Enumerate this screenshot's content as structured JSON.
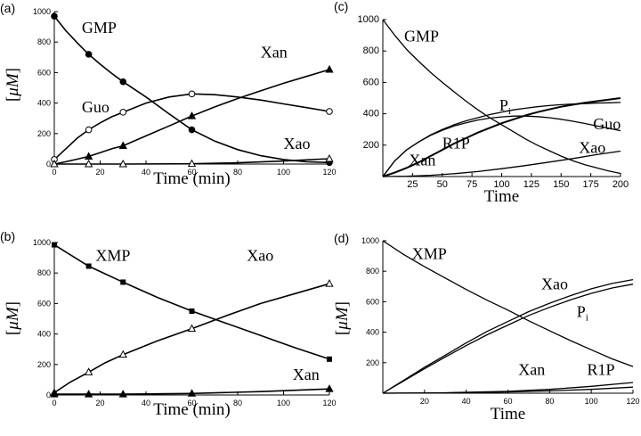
{
  "chart_data": [
    {
      "panel": "(a)",
      "type": "line",
      "xlabel": "Time (min)",
      "ylabel_main": "[",
      "ylabel_unit": "μM",
      "ylabel_close": "]",
      "xlim": [
        0,
        120
      ],
      "ylim": [
        0,
        1000
      ],
      "xticks": [
        0,
        20,
        40,
        60,
        80,
        100,
        120
      ],
      "yticks": [
        0,
        200,
        400,
        600,
        800,
        1000
      ],
      "series": [
        {
          "name": "GMP",
          "marker": "filled-circle",
          "x": [
            0,
            15,
            30,
            60,
            120
          ],
          "y": [
            970,
            720,
            540,
            225,
            10
          ],
          "curve_x": [
            0,
            5,
            10,
            15,
            20,
            25,
            30,
            40,
            50,
            60,
            70,
            80,
            90,
            100,
            110,
            120
          ],
          "curve_y": [
            970,
            875,
            795,
            720,
            655,
            595,
            540,
            440,
            330,
            225,
            150,
            95,
            55,
            30,
            15,
            10
          ]
        },
        {
          "name": "Guo",
          "marker": "open-circle",
          "x": [
            0,
            15,
            30,
            60,
            120
          ],
          "y": [
            30,
            225,
            340,
            460,
            345
          ],
          "curve_x": [
            0,
            5,
            10,
            15,
            20,
            25,
            30,
            40,
            50,
            60,
            70,
            80,
            90,
            100,
            110,
            120
          ],
          "curve_y": [
            30,
            100,
            170,
            225,
            270,
            310,
            340,
            400,
            440,
            460,
            455,
            440,
            420,
            395,
            370,
            345
          ]
        },
        {
          "name": "Xan",
          "marker": "filled-triangle",
          "x": [
            0,
            15,
            30,
            60,
            120
          ],
          "y": [
            0,
            50,
            120,
            315,
            620
          ],
          "curve_x": [
            0,
            5,
            10,
            15,
            20,
            25,
            30,
            40,
            50,
            60,
            70,
            80,
            90,
            100,
            110,
            120
          ],
          "curve_y": [
            0,
            15,
            32,
            50,
            75,
            100,
            120,
            185,
            250,
            315,
            375,
            430,
            480,
            530,
            575,
            620
          ]
        },
        {
          "name": "Xao",
          "marker": "open-triangle",
          "x": [
            0,
            15,
            30,
            60,
            120
          ],
          "y": [
            0,
            0,
            0,
            2,
            35
          ],
          "curve_x": [
            0,
            30,
            60,
            80,
            100,
            120
          ],
          "curve_y": [
            0,
            0,
            2,
            8,
            20,
            35
          ]
        }
      ],
      "labels": [
        {
          "text": "GMP",
          "x": 12,
          "y": 860
        },
        {
          "text": "Guo",
          "x": 12,
          "y": 340
        },
        {
          "text": "Xan",
          "x": 90,
          "y": 700
        },
        {
          "text": "Xao",
          "x": 100,
          "y": 100
        }
      ]
    },
    {
      "panel": "(b)",
      "type": "line",
      "xlabel": "Time (min)",
      "ylabel_main": "[",
      "ylabel_unit": "μM",
      "ylabel_close": "]",
      "xlim": [
        0,
        120
      ],
      "ylim": [
        0,
        1000
      ],
      "xticks": [
        0,
        20,
        40,
        60,
        80,
        100,
        120
      ],
      "yticks": [
        0,
        200,
        400,
        600,
        800,
        1000
      ],
      "series": [
        {
          "name": "XMP",
          "marker": "filled-square",
          "x": [
            0,
            15,
            30,
            60,
            120
          ],
          "y": [
            985,
            845,
            740,
            550,
            235
          ],
          "curve_x": [
            0,
            15,
            30,
            45,
            60,
            75,
            90,
            105,
            120
          ],
          "curve_y": [
            985,
            845,
            740,
            640,
            550,
            470,
            390,
            310,
            235
          ]
        },
        {
          "name": "Xao",
          "marker": "open-triangle",
          "x": [
            0,
            15,
            30,
            60,
            120
          ],
          "y": [
            15,
            150,
            265,
            435,
            730
          ],
          "curve_x": [
            0,
            7,
            15,
            22,
            30,
            45,
            60,
            75,
            90,
            105,
            120
          ],
          "curve_y": [
            15,
            85,
            150,
            210,
            265,
            355,
            435,
            520,
            600,
            665,
            730
          ]
        },
        {
          "name": "Xan",
          "marker": "filled-triangle",
          "x": [
            0,
            15,
            30,
            60,
            120
          ],
          "y": [
            5,
            5,
            5,
            10,
            40
          ],
          "curve_x": [
            0,
            30,
            60,
            90,
            120
          ],
          "curve_y": [
            5,
            5,
            10,
            22,
            40
          ]
        }
      ],
      "labels": [
        {
          "text": "XMP",
          "x": 18,
          "y": 880
        },
        {
          "text": "Xao",
          "x": 84,
          "y": 880
        },
        {
          "text": "Xan",
          "x": 104,
          "y": 100
        }
      ]
    },
    {
      "panel": "(c)",
      "type": "line",
      "xlabel": "Time",
      "xlim": [
        0,
        200
      ],
      "ylim": [
        0,
        1000
      ],
      "xticks": [
        25,
        50,
        75,
        100,
        125,
        150,
        175,
        200
      ],
      "yticks": [
        200,
        400,
        600,
        800,
        1000
      ],
      "series": [
        {
          "name": "GMP",
          "x": [
            0,
            10,
            20,
            30,
            40,
            50,
            60,
            70,
            80,
            90,
            100,
            110,
            120,
            130,
            140,
            150,
            160,
            170,
            180,
            190,
            200
          ],
          "y": [
            1000,
            900,
            810,
            735,
            665,
            600,
            540,
            480,
            425,
            375,
            330,
            285,
            240,
            200,
            165,
            130,
            100,
            75,
            55,
            35,
            20
          ]
        },
        {
          "name": "P_i",
          "x": [
            0,
            10,
            20,
            30,
            40,
            50,
            60,
            70,
            80,
            90,
            100,
            110,
            120,
            130,
            140,
            150,
            160,
            170,
            180,
            190,
            200
          ],
          "y": [
            0,
            100,
            170,
            220,
            265,
            300,
            330,
            355,
            375,
            395,
            410,
            425,
            435,
            445,
            452,
            458,
            462,
            465,
            468,
            470,
            472
          ]
        },
        {
          "name": "R1P",
          "x": [
            0,
            10,
            20,
            30,
            40,
            50,
            60,
            70,
            80,
            90,
            100,
            110,
            120,
            130,
            140,
            150,
            160,
            170,
            180,
            190,
            200
          ],
          "y": [
            0,
            100,
            170,
            220,
            262,
            295,
            322,
            342,
            360,
            372,
            380,
            385,
            385,
            382,
            375,
            365,
            352,
            338,
            322,
            308,
            292
          ]
        },
        {
          "name": "Xan",
          "x": [
            0,
            10,
            20,
            30,
            40,
            50,
            60,
            70,
            80,
            90,
            100,
            110,
            120,
            130,
            140,
            150,
            160,
            170,
            180,
            190,
            200
          ],
          "y": [
            0,
            25,
            55,
            90,
            130,
            170,
            210,
            245,
            280,
            310,
            340,
            365,
            390,
            410,
            428,
            445,
            458,
            470,
            480,
            490,
            500
          ]
        },
        {
          "name": "Xao",
          "x": [
            0,
            20,
            40,
            60,
            80,
            100,
            120,
            140,
            160,
            180,
            200
          ],
          "y": [
            0,
            2,
            8,
            18,
            32,
            50,
            70,
            92,
            115,
            140,
            162
          ]
        }
      ],
      "labels": [
        {
          "text": "GMP",
          "x": 18,
          "y": 860
        },
        {
          "text": "P",
          "sub": "i",
          "x": 98,
          "y": 420
        },
        {
          "text": "R1P",
          "x": 50,
          "y": 180
        },
        {
          "text": "Guo",
          "x": 177,
          "y": 300
        },
        {
          "text": "Xan",
          "x": 22,
          "y": 70
        },
        {
          "text": "Xao",
          "x": 165,
          "y": 150
        }
      ]
    },
    {
      "panel": "(d)",
      "type": "line",
      "xlabel": "Time",
      "ylabel_main": "[",
      "ylabel_unit": "μM",
      "ylabel_close": "]",
      "xlim": [
        0,
        120
      ],
      "ylim": [
        0,
        1000
      ],
      "xticks": [
        20,
        40,
        60,
        80,
        100,
        120
      ],
      "yticks": [
        200,
        400,
        600,
        800,
        1000
      ],
      "series": [
        {
          "name": "XMP",
          "x": [
            0,
            10,
            20,
            30,
            40,
            50,
            60,
            70,
            80,
            90,
            100,
            110,
            120
          ],
          "y": [
            1000,
            910,
            830,
            755,
            680,
            610,
            545,
            475,
            410,
            345,
            285,
            225,
            175
          ]
        },
        {
          "name": "Xao",
          "x": [
            0,
            10,
            20,
            30,
            40,
            50,
            60,
            70,
            80,
            90,
            100,
            110,
            120
          ],
          "y": [
            0,
            85,
            170,
            250,
            330,
            405,
            470,
            535,
            590,
            640,
            685,
            720,
            745
          ]
        },
        {
          "name": "P_i",
          "x": [
            0,
            10,
            20,
            30,
            40,
            50,
            60,
            70,
            80,
            90,
            100,
            110,
            120
          ],
          "y": [
            0,
            80,
            160,
            238,
            312,
            383,
            447,
            510,
            563,
            612,
            655,
            690,
            715
          ]
        },
        {
          "name": "Xan",
          "x": [
            0,
            30,
            60,
            80,
            100,
            120
          ],
          "y": [
            0,
            2,
            8,
            15,
            25,
            40
          ]
        },
        {
          "name": "R1P",
          "x": [
            0,
            30,
            60,
            80,
            100,
            120
          ],
          "y": [
            0,
            3,
            12,
            25,
            45,
            70
          ]
        }
      ],
      "labels": [
        {
          "text": "XMP",
          "x": 14,
          "y": 880
        },
        {
          "text": "Xao",
          "x": 76,
          "y": 680
        },
        {
          "text": "P",
          "sub": "i",
          "x": 93,
          "y": 500
        },
        {
          "text": "Xan",
          "x": 65,
          "y": 120
        },
        {
          "text": "R1P",
          "x": 98,
          "y": 120
        }
      ]
    }
  ]
}
